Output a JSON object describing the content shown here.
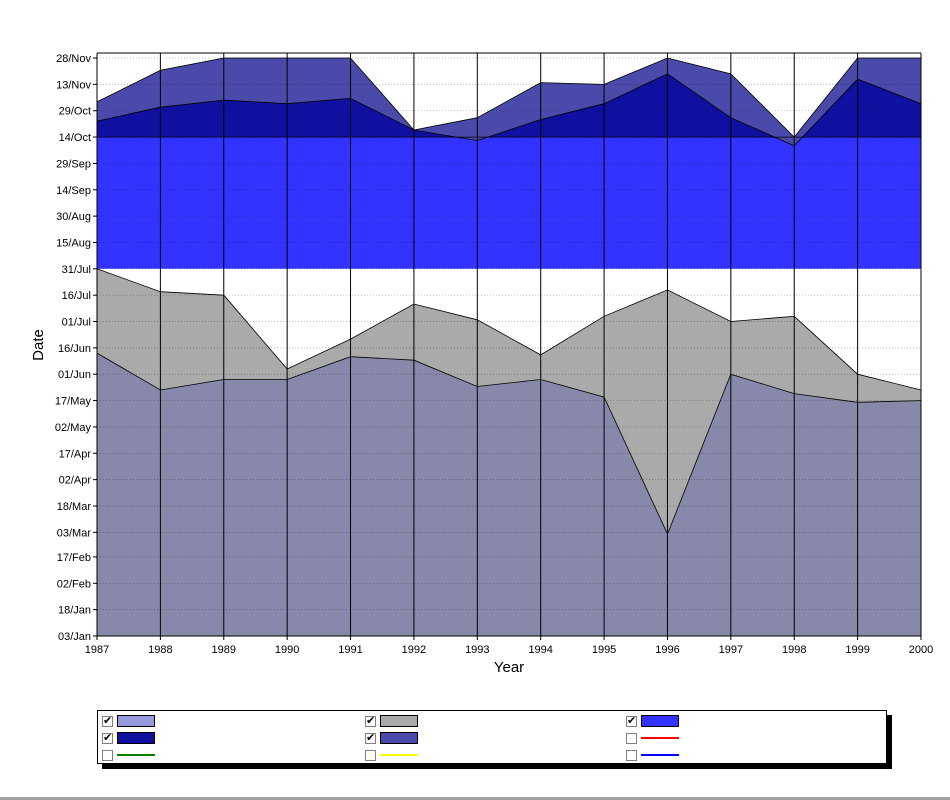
{
  "chart_data": {
    "type": "area",
    "title": "",
    "xlabel": "Year",
    "ylabel": "Date",
    "x": [
      1987,
      1988,
      1989,
      1990,
      1991,
      1992,
      1993,
      1994,
      1995,
      1996,
      1997,
      1998,
      1999,
      2000
    ],
    "xlim": [
      1987,
      2000
    ],
    "ylim": [
      "03/Jan",
      "28/Nov"
    ],
    "x_ticks": [
      "1987",
      "1988",
      "1989",
      "1990",
      "1991",
      "1992",
      "1993",
      "1994",
      "1995",
      "1996",
      "1997",
      "1998",
      "1999",
      "2000"
    ],
    "y_ticks": [
      "03/Jan",
      "18/Jan",
      "02/Feb",
      "17/Feb",
      "03/Mar",
      "18/Mar",
      "02/Apr",
      "17/Apr",
      "02/May",
      "17/May",
      "01/Jun",
      "16/Jun",
      "01/Jul",
      "16/Jul",
      "31/Jul",
      "15/Aug",
      "30/Aug",
      "14/Sep",
      "29/Sep",
      "14/Oct",
      "29/Oct",
      "13/Nov",
      "28/Nov"
    ],
    "grid": true,
    "legend_position": "bottom",
    "series": [
      {
        "name": "",
        "color": "#8888aa",
        "legend_color": "#9999dd",
        "checked": true,
        "lower": [
          "03/Jan",
          "03/Jan",
          "03/Jan",
          "03/Jan",
          "03/Jan",
          "03/Jan",
          "03/Jan",
          "03/Jan",
          "03/Jan",
          "03/Jan",
          "03/Jan",
          "03/Jan",
          "03/Jan",
          "03/Jan"
        ],
        "upper": [
          "13/Jun",
          "23/May",
          "29/May",
          "29/May",
          "11/Jun",
          "09/Jun",
          "25/May",
          "29/May",
          "19/May",
          "02/Mar",
          "01/Jun",
          "21/May",
          "16/May",
          "17/May"
        ]
      },
      {
        "name": "",
        "color": "#aaaaaa",
        "legend_color": "#aaaaaa",
        "checked": true,
        "lower": [
          "13/Jun",
          "23/May",
          "29/May",
          "29/May",
          "11/Jun",
          "09/Jun",
          "25/May",
          "29/May",
          "19/May",
          "02/Mar",
          "01/Jun",
          "21/May",
          "16/May",
          "17/May"
        ],
        "upper": [
          "31/Jul",
          "18/Jul",
          "16/Jul",
          "04/Jun",
          "21/Jun",
          "11/Jul",
          "02/Jul",
          "12/Jun",
          "04/Jul",
          "19/Jul",
          "01/Jul",
          "04/Jul",
          "01/Jun",
          "23/May"
        ]
      },
      {
        "name": "",
        "color": "#3333ff",
        "legend_color": "#3333ff",
        "checked": true,
        "lower": [
          "31/Jul",
          "31/Jul",
          "31/Jul",
          "31/Jul",
          "31/Jul",
          "31/Jul",
          "31/Jul",
          "31/Jul",
          "31/Jul",
          "31/Jul",
          "31/Jul",
          "31/Jul",
          "31/Jul",
          "31/Jul"
        ],
        "upper": [
          "14/Oct",
          "14/Oct",
          "14/Oct",
          "14/Oct",
          "14/Oct",
          "14/Oct",
          "14/Oct",
          "14/Oct",
          "14/Oct",
          "14/Oct",
          "14/Oct",
          "14/Oct",
          "14/Oct",
          "14/Oct"
        ]
      },
      {
        "name": "",
        "color": "#1010a0",
        "legend_color": "#1010a0",
        "checked": true,
        "lower": [
          "14/Oct",
          "14/Oct",
          "14/Oct",
          "14/Oct",
          "14/Oct",
          "14/Oct",
          "14/Oct",
          "14/Oct",
          "14/Oct",
          "14/Oct",
          "14/Oct",
          "14/Oct",
          "14/Oct",
          "14/Oct"
        ],
        "upper": [
          "23/Oct",
          "31/Oct",
          "04/Nov",
          "02/Nov",
          "05/Nov",
          "18/Oct",
          "12/Oct",
          "24/Oct",
          "02/Nov",
          "19/Nov",
          "25/Oct",
          "09/Oct",
          "16/Nov",
          "02/Nov"
        ]
      },
      {
        "name": "",
        "color": "#4a4aaa",
        "legend_color": "#4a4aaa",
        "checked": true,
        "lower": [
          "23/Oct",
          "31/Oct",
          "04/Nov",
          "02/Nov",
          "05/Nov",
          "18/Oct",
          "12/Oct",
          "24/Oct",
          "02/Nov",
          "19/Nov",
          "25/Oct",
          "09/Oct",
          "16/Nov",
          "02/Nov"
        ],
        "upper": [
          "03/Nov",
          "21/Nov",
          "28/Nov",
          "28/Nov",
          "28/Nov",
          "18/Oct",
          "25/Oct",
          "14/Nov",
          "13/Nov",
          "28/Nov",
          "19/Nov",
          "14/Oct",
          "28/Nov",
          "28/Nov"
        ]
      }
    ],
    "extra_legend": [
      {
        "type": "line",
        "color": "#ff0000",
        "checked": false
      },
      {
        "type": "line",
        "color": "#008000",
        "checked": false
      },
      {
        "type": "line",
        "color": "#ffff00",
        "checked": false
      },
      {
        "type": "line",
        "color": "#0000ff",
        "checked": false
      }
    ]
  }
}
